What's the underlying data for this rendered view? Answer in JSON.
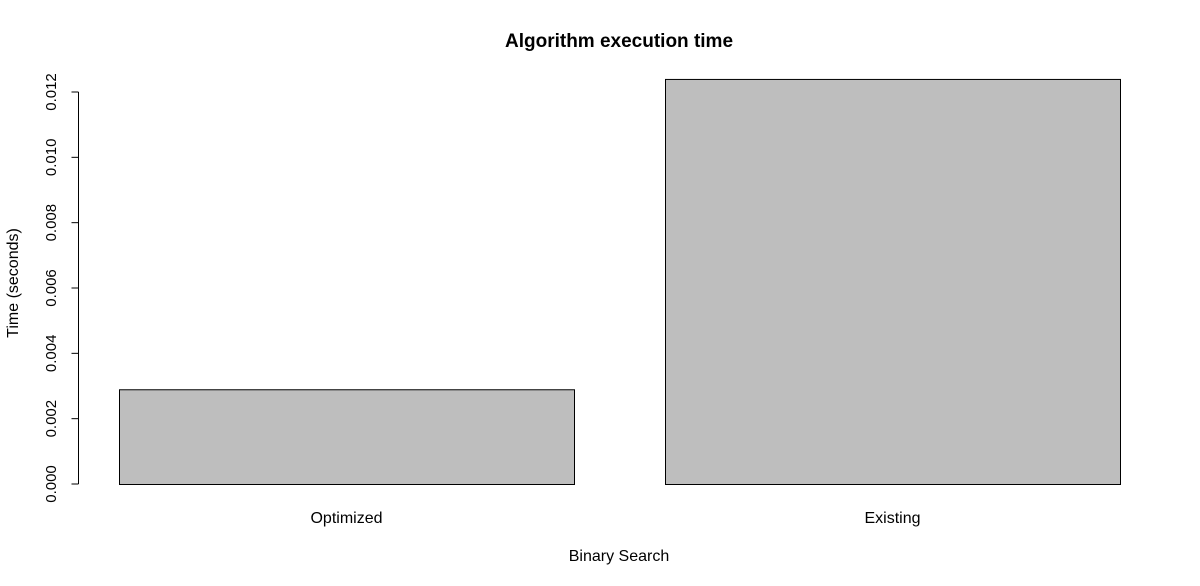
{
  "chart_data": {
    "type": "bar",
    "title": "Algorithm execution time",
    "xlabel": "Binary Search",
    "ylabel": "Time (seconds)",
    "categories": [
      "Optimized",
      "Existing"
    ],
    "values": [
      0.0029,
      0.0124
    ],
    "ylim": [
      0,
      0.012
    ],
    "yticks": [
      0,
      0.002,
      0.004,
      0.006,
      0.008,
      0.01,
      0.012
    ],
    "ytick_labels": [
      "0.000",
      "0.002",
      "0.004",
      "0.006",
      "0.008",
      "0.010",
      "0.012"
    ],
    "bar_color": "#bebebe",
    "grid": false,
    "legend": "none"
  }
}
